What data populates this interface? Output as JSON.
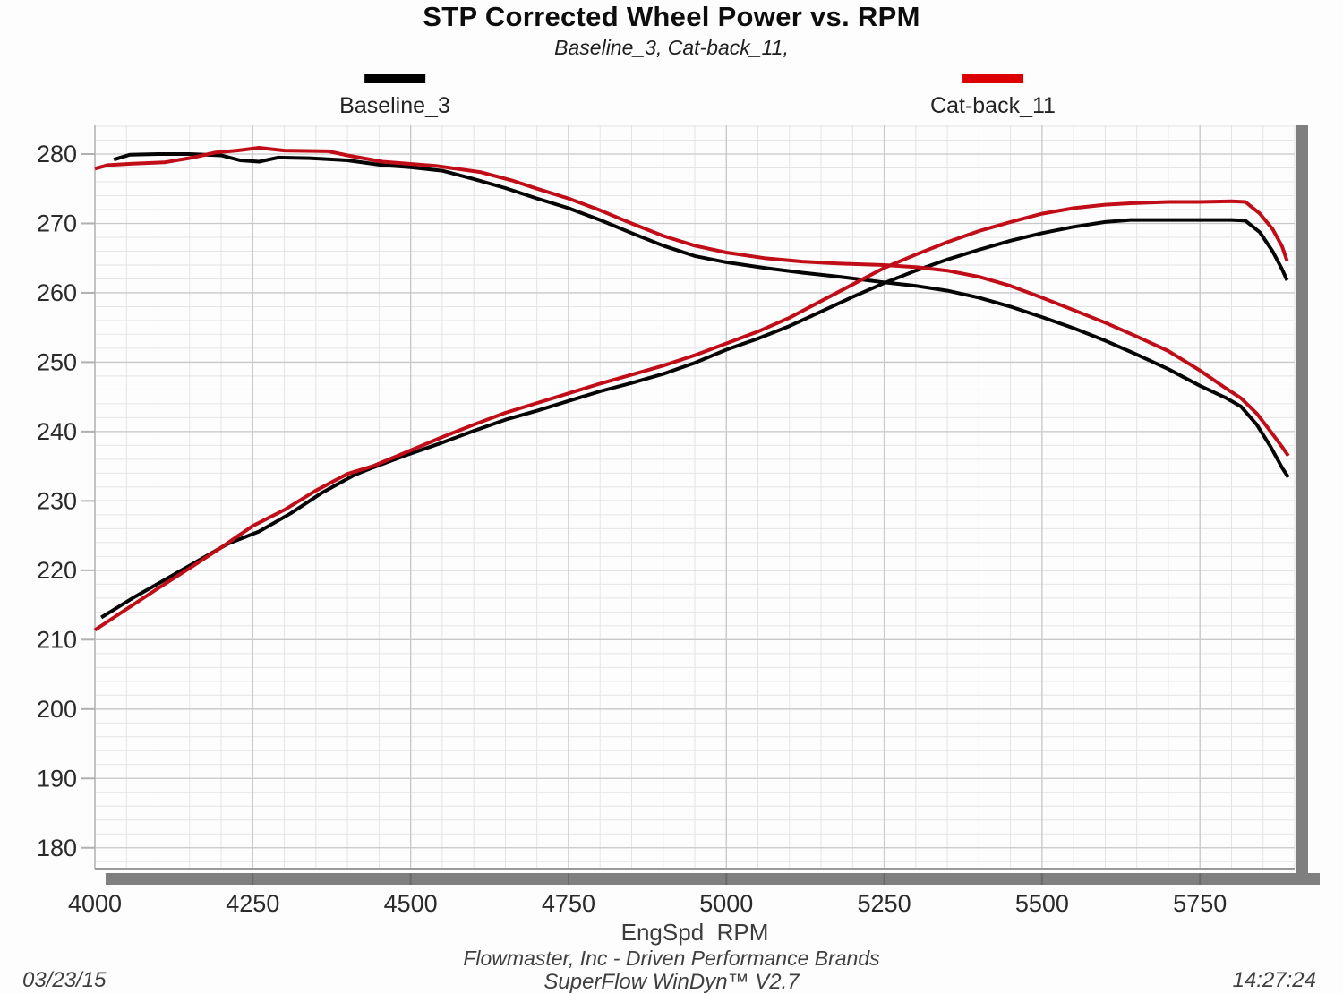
{
  "title": "STP Corrected Wheel Power vs. RPM",
  "subtitle": "Baseline_3, Cat-back_11,",
  "legend": [
    {
      "label": "Baseline_3",
      "color": "#000000"
    },
    {
      "label": "Cat-back_11",
      "color": "#dd0000"
    }
  ],
  "x_axis_title": "EngSpd  RPM",
  "footer": {
    "date": "03/23/15",
    "company": "Flowmaster, Inc - Driven Performance Brands",
    "software": "SuperFlow WinDyn™ V2.7",
    "time": "14:27:24"
  },
  "colors": {
    "curve_black": "#050505",
    "curve_red": "#c00d18",
    "grid_minor": "#e4e4e4",
    "grid_major": "#c8c8c8",
    "axis_edge": "#9a9a9a",
    "tick_mark": "#b0b0b0",
    "shadow_bar": "#7f7f7f",
    "shadow_bar_notch": "#6a6a6a",
    "tick_label": "#2a2a2a"
  },
  "chart_data": {
    "type": "line",
    "title": "STP Corrected Wheel Power vs. RPM",
    "xlabel": "EngSpd  RPM",
    "ylabel": "",
    "xlim": [
      4000,
      5900
    ],
    "ylim": [
      177.0,
      284.13
    ],
    "x_ticks": [
      4000,
      4250,
      4500,
      4750,
      5000,
      5250,
      5500,
      5750
    ],
    "y_ticks": [
      180,
      190,
      200,
      210,
      220,
      230,
      240,
      250,
      260,
      270,
      280
    ],
    "grid": {
      "on": true,
      "x_minor_step": 50,
      "y_minor_step": 2
    },
    "legend_position": "top",
    "series": [
      {
        "name": "Baseline_3 (descending curve)",
        "color": "#050505",
        "points": [
          [
            4030,
            279.2
          ],
          [
            4055,
            279.9
          ],
          [
            4100,
            280.0
          ],
          [
            4150,
            280.0
          ],
          [
            4200,
            279.8
          ],
          [
            4230,
            279.1
          ],
          [
            4260,
            278.9
          ],
          [
            4290,
            279.5
          ],
          [
            4340,
            279.4
          ],
          [
            4400,
            279.1
          ],
          [
            4455,
            278.4
          ],
          [
            4500,
            278.1
          ],
          [
            4550,
            277.6
          ],
          [
            4600,
            276.4
          ],
          [
            4650,
            275.1
          ],
          [
            4700,
            273.6
          ],
          [
            4750,
            272.2
          ],
          [
            4800,
            270.5
          ],
          [
            4850,
            268.6
          ],
          [
            4900,
            266.8
          ],
          [
            4950,
            265.3
          ],
          [
            5000,
            264.4
          ],
          [
            5060,
            263.6
          ],
          [
            5120,
            262.9
          ],
          [
            5180,
            262.3
          ],
          [
            5250,
            261.5
          ],
          [
            5300,
            261.0
          ],
          [
            5350,
            260.3
          ],
          [
            5400,
            259.3
          ],
          [
            5450,
            258.0
          ],
          [
            5500,
            256.5
          ],
          [
            5550,
            254.9
          ],
          [
            5600,
            253.1
          ],
          [
            5650,
            251.1
          ],
          [
            5700,
            249.0
          ],
          [
            5750,
            246.6
          ],
          [
            5790,
            244.9
          ],
          [
            5815,
            243.6
          ],
          [
            5840,
            241.0
          ],
          [
            5862,
            237.8
          ],
          [
            5880,
            234.8
          ],
          [
            5890,
            233.4
          ]
        ]
      },
      {
        "name": "Cat-back_11 (descending curve)",
        "color": "#c00d18",
        "points": [
          [
            4000,
            277.9
          ],
          [
            4020,
            278.4
          ],
          [
            4060,
            278.6
          ],
          [
            4110,
            278.8
          ],
          [
            4155,
            279.5
          ],
          [
            4190,
            280.2
          ],
          [
            4225,
            280.5
          ],
          [
            4260,
            280.9
          ],
          [
            4300,
            280.5
          ],
          [
            4370,
            280.4
          ],
          [
            4400,
            279.8
          ],
          [
            4455,
            278.9
          ],
          [
            4540,
            278.3
          ],
          [
            4610,
            277.4
          ],
          [
            4660,
            276.2
          ],
          [
            4700,
            275.0
          ],
          [
            4750,
            273.6
          ],
          [
            4800,
            271.9
          ],
          [
            4850,
            270.0
          ],
          [
            4900,
            268.2
          ],
          [
            4950,
            266.8
          ],
          [
            5000,
            265.8
          ],
          [
            5060,
            265.0
          ],
          [
            5120,
            264.5
          ],
          [
            5180,
            264.2
          ],
          [
            5250,
            264.0
          ],
          [
            5300,
            263.7
          ],
          [
            5350,
            263.2
          ],
          [
            5400,
            262.3
          ],
          [
            5450,
            261.0
          ],
          [
            5500,
            259.3
          ],
          [
            5550,
            257.5
          ],
          [
            5600,
            255.7
          ],
          [
            5650,
            253.7
          ],
          [
            5700,
            251.6
          ],
          [
            5750,
            248.8
          ],
          [
            5790,
            246.3
          ],
          [
            5815,
            244.8
          ],
          [
            5840,
            242.6
          ],
          [
            5862,
            240.0
          ],
          [
            5880,
            237.8
          ],
          [
            5890,
            236.5
          ]
        ]
      },
      {
        "name": "Baseline_3 (power curve)",
        "color": "#050505",
        "points": [
          [
            4010,
            213.2
          ],
          [
            4060,
            216.0
          ],
          [
            4110,
            218.6
          ],
          [
            4160,
            221.2
          ],
          [
            4210,
            223.8
          ],
          [
            4260,
            225.6
          ],
          [
            4310,
            228.2
          ],
          [
            4360,
            231.2
          ],
          [
            4410,
            233.7
          ],
          [
            4440,
            234.8
          ],
          [
            4490,
            236.5
          ],
          [
            4550,
            238.4
          ],
          [
            4600,
            240.1
          ],
          [
            4650,
            241.7
          ],
          [
            4700,
            243.0
          ],
          [
            4750,
            244.4
          ],
          [
            4800,
            245.8
          ],
          [
            4850,
            247.0
          ],
          [
            4900,
            248.3
          ],
          [
            4950,
            249.9
          ],
          [
            5000,
            251.8
          ],
          [
            5050,
            253.4
          ],
          [
            5100,
            255.2
          ],
          [
            5150,
            257.3
          ],
          [
            5200,
            259.4
          ],
          [
            5250,
            261.4
          ],
          [
            5300,
            263.2
          ],
          [
            5350,
            264.8
          ],
          [
            5400,
            266.2
          ],
          [
            5450,
            267.5
          ],
          [
            5500,
            268.6
          ],
          [
            5550,
            269.5
          ],
          [
            5600,
            270.2
          ],
          [
            5640,
            270.5
          ],
          [
            5700,
            270.5
          ],
          [
            5750,
            270.5
          ],
          [
            5800,
            270.5
          ],
          [
            5822,
            270.4
          ],
          [
            5845,
            268.7
          ],
          [
            5865,
            266.0
          ],
          [
            5880,
            263.4
          ],
          [
            5888,
            261.8
          ]
        ]
      },
      {
        "name": "Cat-back_11 (power curve)",
        "color": "#c00d18",
        "points": [
          [
            4000,
            211.4
          ],
          [
            4050,
            214.4
          ],
          [
            4100,
            217.4
          ],
          [
            4150,
            220.3
          ],
          [
            4200,
            223.3
          ],
          [
            4250,
            226.4
          ],
          [
            4300,
            228.7
          ],
          [
            4350,
            231.5
          ],
          [
            4400,
            233.9
          ],
          [
            4440,
            235.0
          ],
          [
            4490,
            236.9
          ],
          [
            4550,
            239.2
          ],
          [
            4600,
            241.0
          ],
          [
            4650,
            242.7
          ],
          [
            4700,
            244.1
          ],
          [
            4750,
            245.5
          ],
          [
            4800,
            246.9
          ],
          [
            4850,
            248.2
          ],
          [
            4900,
            249.5
          ],
          [
            4950,
            251.0
          ],
          [
            5000,
            252.7
          ],
          [
            5050,
            254.4
          ],
          [
            5100,
            256.4
          ],
          [
            5150,
            258.8
          ],
          [
            5200,
            261.2
          ],
          [
            5250,
            263.6
          ],
          [
            5300,
            265.5
          ],
          [
            5350,
            267.3
          ],
          [
            5400,
            268.9
          ],
          [
            5450,
            270.2
          ],
          [
            5500,
            271.4
          ],
          [
            5550,
            272.2
          ],
          [
            5600,
            272.7
          ],
          [
            5640,
            272.9
          ],
          [
            5700,
            273.1
          ],
          [
            5750,
            273.1
          ],
          [
            5800,
            273.2
          ],
          [
            5822,
            273.1
          ],
          [
            5845,
            271.4
          ],
          [
            5865,
            269.2
          ],
          [
            5880,
            266.7
          ],
          [
            5888,
            264.6
          ]
        ]
      }
    ]
  }
}
